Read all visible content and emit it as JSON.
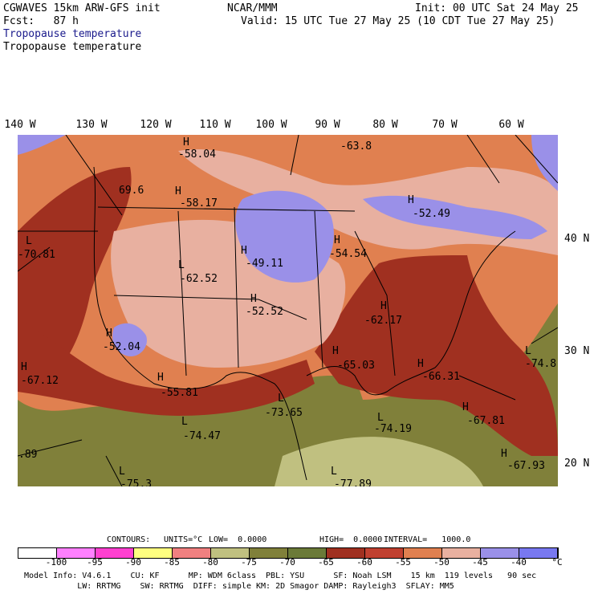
{
  "header": {
    "line1_left": "CGWAVES 15km ARW-GFS init",
    "line1_mid": "NCAR/MMM",
    "line1_right": "Init: 00 UTC Sat 24 May 25",
    "line2_left": "Fcst:   87 h",
    "line2_right": "Valid: 15 UTC Tue 27 May 25 (10 CDT Tue 27 May 25)",
    "field1": "Tropopause temperature",
    "field2": "Tropopause temperature"
  },
  "map": {
    "lon_labels": [
      "140 W",
      "130 W",
      "120 W",
      "110 W",
      "100 W",
      "90 W",
      "80 W",
      "70 W",
      "60 W"
    ],
    "lat_labels": [
      "40 N",
      "30 N",
      "20 N"
    ],
    "annotations": [
      {
        "mark": "H",
        "value": "-58.04"
      },
      {
        "mark": "",
        "value": "-63.8"
      },
      {
        "mark": "",
        "value": "69.6"
      },
      {
        "mark": "H",
        "value": "-58.17"
      },
      {
        "mark": "H",
        "value": "-52.49"
      },
      {
        "mark": "L",
        "value": "-70.81"
      },
      {
        "mark": "H",
        "value": "-49.11"
      },
      {
        "mark": "H",
        "value": "-54.54"
      },
      {
        "mark": "L",
        "value": "-62.52"
      },
      {
        "mark": "H",
        "value": "-52.52"
      },
      {
        "mark": "H",
        "value": "-62.17"
      },
      {
        "mark": "H",
        "value": "-52.04"
      },
      {
        "mark": "H",
        "value": "-65.03"
      },
      {
        "mark": "L",
        "value": "-74.8"
      },
      {
        "mark": "H",
        "value": "-67.12"
      },
      {
        "mark": "H",
        "value": "-55.81"
      },
      {
        "mark": "H",
        "value": "-66.31"
      },
      {
        "mark": "L",
        "value": "-73.65"
      },
      {
        "mark": "L",
        "value": "-74.47"
      },
      {
        "mark": "L",
        "value": "-74.19"
      },
      {
        "mark": "H",
        "value": "-67.81"
      },
      {
        "mark": "",
        "value": ".89"
      },
      {
        "mark": "H",
        "value": "-67.93"
      },
      {
        "mark": "L",
        "value": "-75.3"
      },
      {
        "mark": "L",
        "value": "-77.89"
      }
    ]
  },
  "contours": {
    "label": "CONTOURS:",
    "units": "UNITS=°C",
    "low": "LOW=  0.0000",
    "high": "HIGH=  0.0000",
    "interval": "INTERVAL=   1000.0"
  },
  "colorbar": {
    "colors": [
      "#ffffff",
      "#ff80ff",
      "#ff40d0",
      "#ffff80",
      "#f08080",
      "#c0c080",
      "#80803a",
      "#6b7a38",
      "#a03020",
      "#c04030",
      "#e08050",
      "#e8b0a0",
      "#9a90e8",
      "#7878f0",
      "#6060f8",
      "#7070ff"
    ],
    "labels": [
      "-100",
      "-95",
      "-90",
      "-85",
      "-80",
      "-75",
      "-70",
      "-65",
      "-60",
      "-55",
      "-50",
      "-45",
      "-40",
      "°C"
    ]
  },
  "footer": {
    "line1": "Model Info: V4.6.1    CU: KF      MP: WDM 6class  PBL: YSU      SF: Noah LSM    15 km  119 levels   90 sec",
    "line2": "           LW: RRTMG    SW: RRTMG  DIFF: simple KM: 2D Smagor DAMP: Rayleigh3  SFLAY: MM5"
  }
}
